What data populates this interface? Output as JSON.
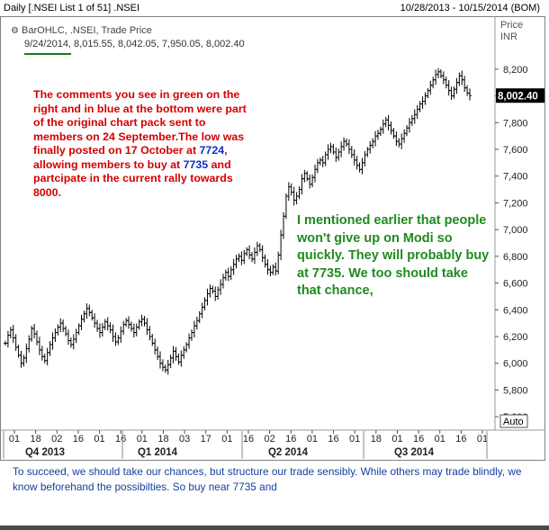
{
  "header": {
    "title_left": "Daily [.NSEI List 1 of 51] .NSEI",
    "title_right": "10/28/2013 - 10/15/2014 (BOM)"
  },
  "info": {
    "study": "BarOHLC, .NSEI, Trade Price",
    "ohlc": "9/24/2014, 8,015.55, 8,042.05, 7,950.05, 8,002.40"
  },
  "axis": {
    "price_label": "Price",
    "currency": "INR",
    "auto_label": "Auto"
  },
  "annotations": {
    "red_parts": [
      "The comments you see in green on the right and in blue at the bottom were part of the original chart pack sent to members on 24 September.The low was finally posted on 17 October at ",
      "7724",
      ", allowing members to buy at ",
      "7735",
      " and partcipate in the current rally towards 8000."
    ],
    "green": "I mentioned earlier that people won't give up on Modi so quickly. They will probably buy at 7735. We too should take that chance,",
    "blue_bottom": "To succeed, we should take our chances, but structure our trade sensibly. While others may trade blindly, we know beforehand the possibilties. So buy near 7735 and"
  },
  "colors": {
    "red": "#d40000",
    "green": "#1f8a1f",
    "blue": "#1440a0",
    "bars": "#000000"
  },
  "chart_data": {
    "type": "ohlc",
    "ylim": [
      5500,
      8300
    ],
    "yticks": [
      5600,
      5800,
      6000,
      6200,
      6400,
      6600,
      6800,
      7000,
      7200,
      7400,
      7600,
      7800,
      8000,
      8200
    ],
    "ytick_labels": [
      "5,600",
      "5,800",
      "6,000",
      "6,200",
      "6,400",
      "6,600",
      "6,800",
      "7,000",
      "7,200",
      "7,400",
      "7,600",
      "7,800",
      "8,000",
      "8,200"
    ],
    "last_price_label": "8,002.40",
    "day_labels": [
      "01",
      "18",
      "02",
      "16",
      "01",
      "16",
      "01",
      "18",
      "03",
      "17",
      "01",
      "16",
      "02",
      "16",
      "01",
      "16",
      "01",
      "18",
      "01",
      "16",
      "01",
      "16",
      "01"
    ],
    "quarter_labels": [
      "Q4 2013",
      "Q1 2014",
      "Q2 2014",
      "Q3 2014"
    ],
    "closes": [
      6150,
      6210,
      6250,
      6190,
      6120,
      6060,
      6000,
      6040,
      6110,
      6180,
      6260,
      6220,
      6160,
      6100,
      6050,
      6020,
      6080,
      6140,
      6190,
      6230,
      6270,
      6300,
      6260,
      6220,
      6170,
      6140,
      6180,
      6230,
      6280,
      6330,
      6370,
      6410,
      6380,
      6340,
      6300,
      6260,
      6230,
      6270,
      6310,
      6280,
      6250,
      6200,
      6160,
      6190,
      6240,
      6290,
      6320,
      6290,
      6260,
      6230,
      6270,
      6310,
      6330,
      6300,
      6250,
      6200,
      6150,
      6100,
      6050,
      6000,
      5970,
      5950,
      5990,
      6040,
      6090,
      6050,
      6010,
      6060,
      6100,
      6140,
      6190,
      6230,
      6280,
      6320,
      6370,
      6420,
      6470,
      6520,
      6560,
      6540,
      6500,
      6550,
      6590,
      6640,
      6680,
      6650,
      6700,
      6740,
      6780,
      6800,
      6770,
      6820,
      6850,
      6810,
      6780,
      6830,
      6880,
      6850,
      6790,
      6740,
      6700,
      6680,
      6720,
      6690,
      6810,
      6960,
      7100,
      7250,
      7320,
      7280,
      7220,
      7250,
      7300,
      7380,
      7420,
      7380,
      7340,
      7390,
      7450,
      7500,
      7520,
      7500,
      7560,
      7600,
      7620,
      7580,
      7540,
      7580,
      7620,
      7660,
      7640,
      7600,
      7560,
      7520,
      7480,
      7450,
      7500,
      7560,
      7600,
      7630,
      7660,
      7700,
      7720,
      7750,
      7790,
      7820,
      7780,
      7740,
      7700,
      7660,
      7640,
      7680,
      7720,
      7760,
      7800,
      7830,
      7860,
      7900,
      7940,
      7960,
      8000,
      8040,
      8080,
      8120,
      8160,
      8180,
      8150,
      8120,
      8080,
      8040,
      8000,
      8050,
      8100,
      8150,
      8120,
      8060,
      8020,
      8002
    ]
  }
}
